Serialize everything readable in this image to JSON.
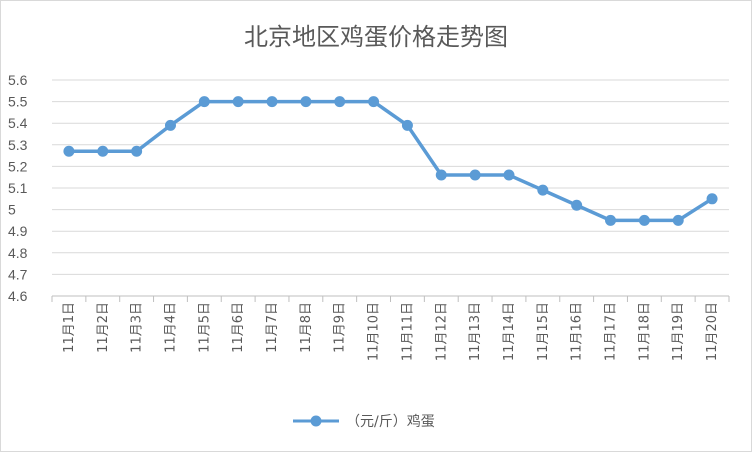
{
  "chart_data": {
    "type": "line",
    "title": "北京地区鸡蛋价格走势图",
    "xlabel": "",
    "ylabel": "",
    "ylim": [
      4.6,
      5.6
    ],
    "yticks": [
      "4.6",
      "4.7",
      "4.8",
      "4.9",
      "5",
      "5.1",
      "5.2",
      "5.3",
      "5.4",
      "5.5",
      "5.6"
    ],
    "grid": true,
    "legend_position": "bottom",
    "categories": [
      "11月1日",
      "11月2日",
      "11月3日",
      "11月4日",
      "11月5日",
      "11月6日",
      "11月7日",
      "11月8日",
      "11月9日",
      "11月10日",
      "11月11日",
      "11月12日",
      "11月13日",
      "11月14日",
      "11月15日",
      "11月16日",
      "11月17日",
      "11月18日",
      "11月19日",
      "11月20日"
    ],
    "series": [
      {
        "name": "（元/斤）鸡蛋",
        "color": "#5b9bd5",
        "values": [
          5.27,
          5.27,
          5.27,
          5.39,
          5.5,
          5.5,
          5.5,
          5.5,
          5.5,
          5.5,
          5.39,
          5.16,
          5.16,
          5.16,
          5.09,
          5.02,
          4.95,
          4.95,
          4.95,
          5.05
        ]
      }
    ]
  }
}
